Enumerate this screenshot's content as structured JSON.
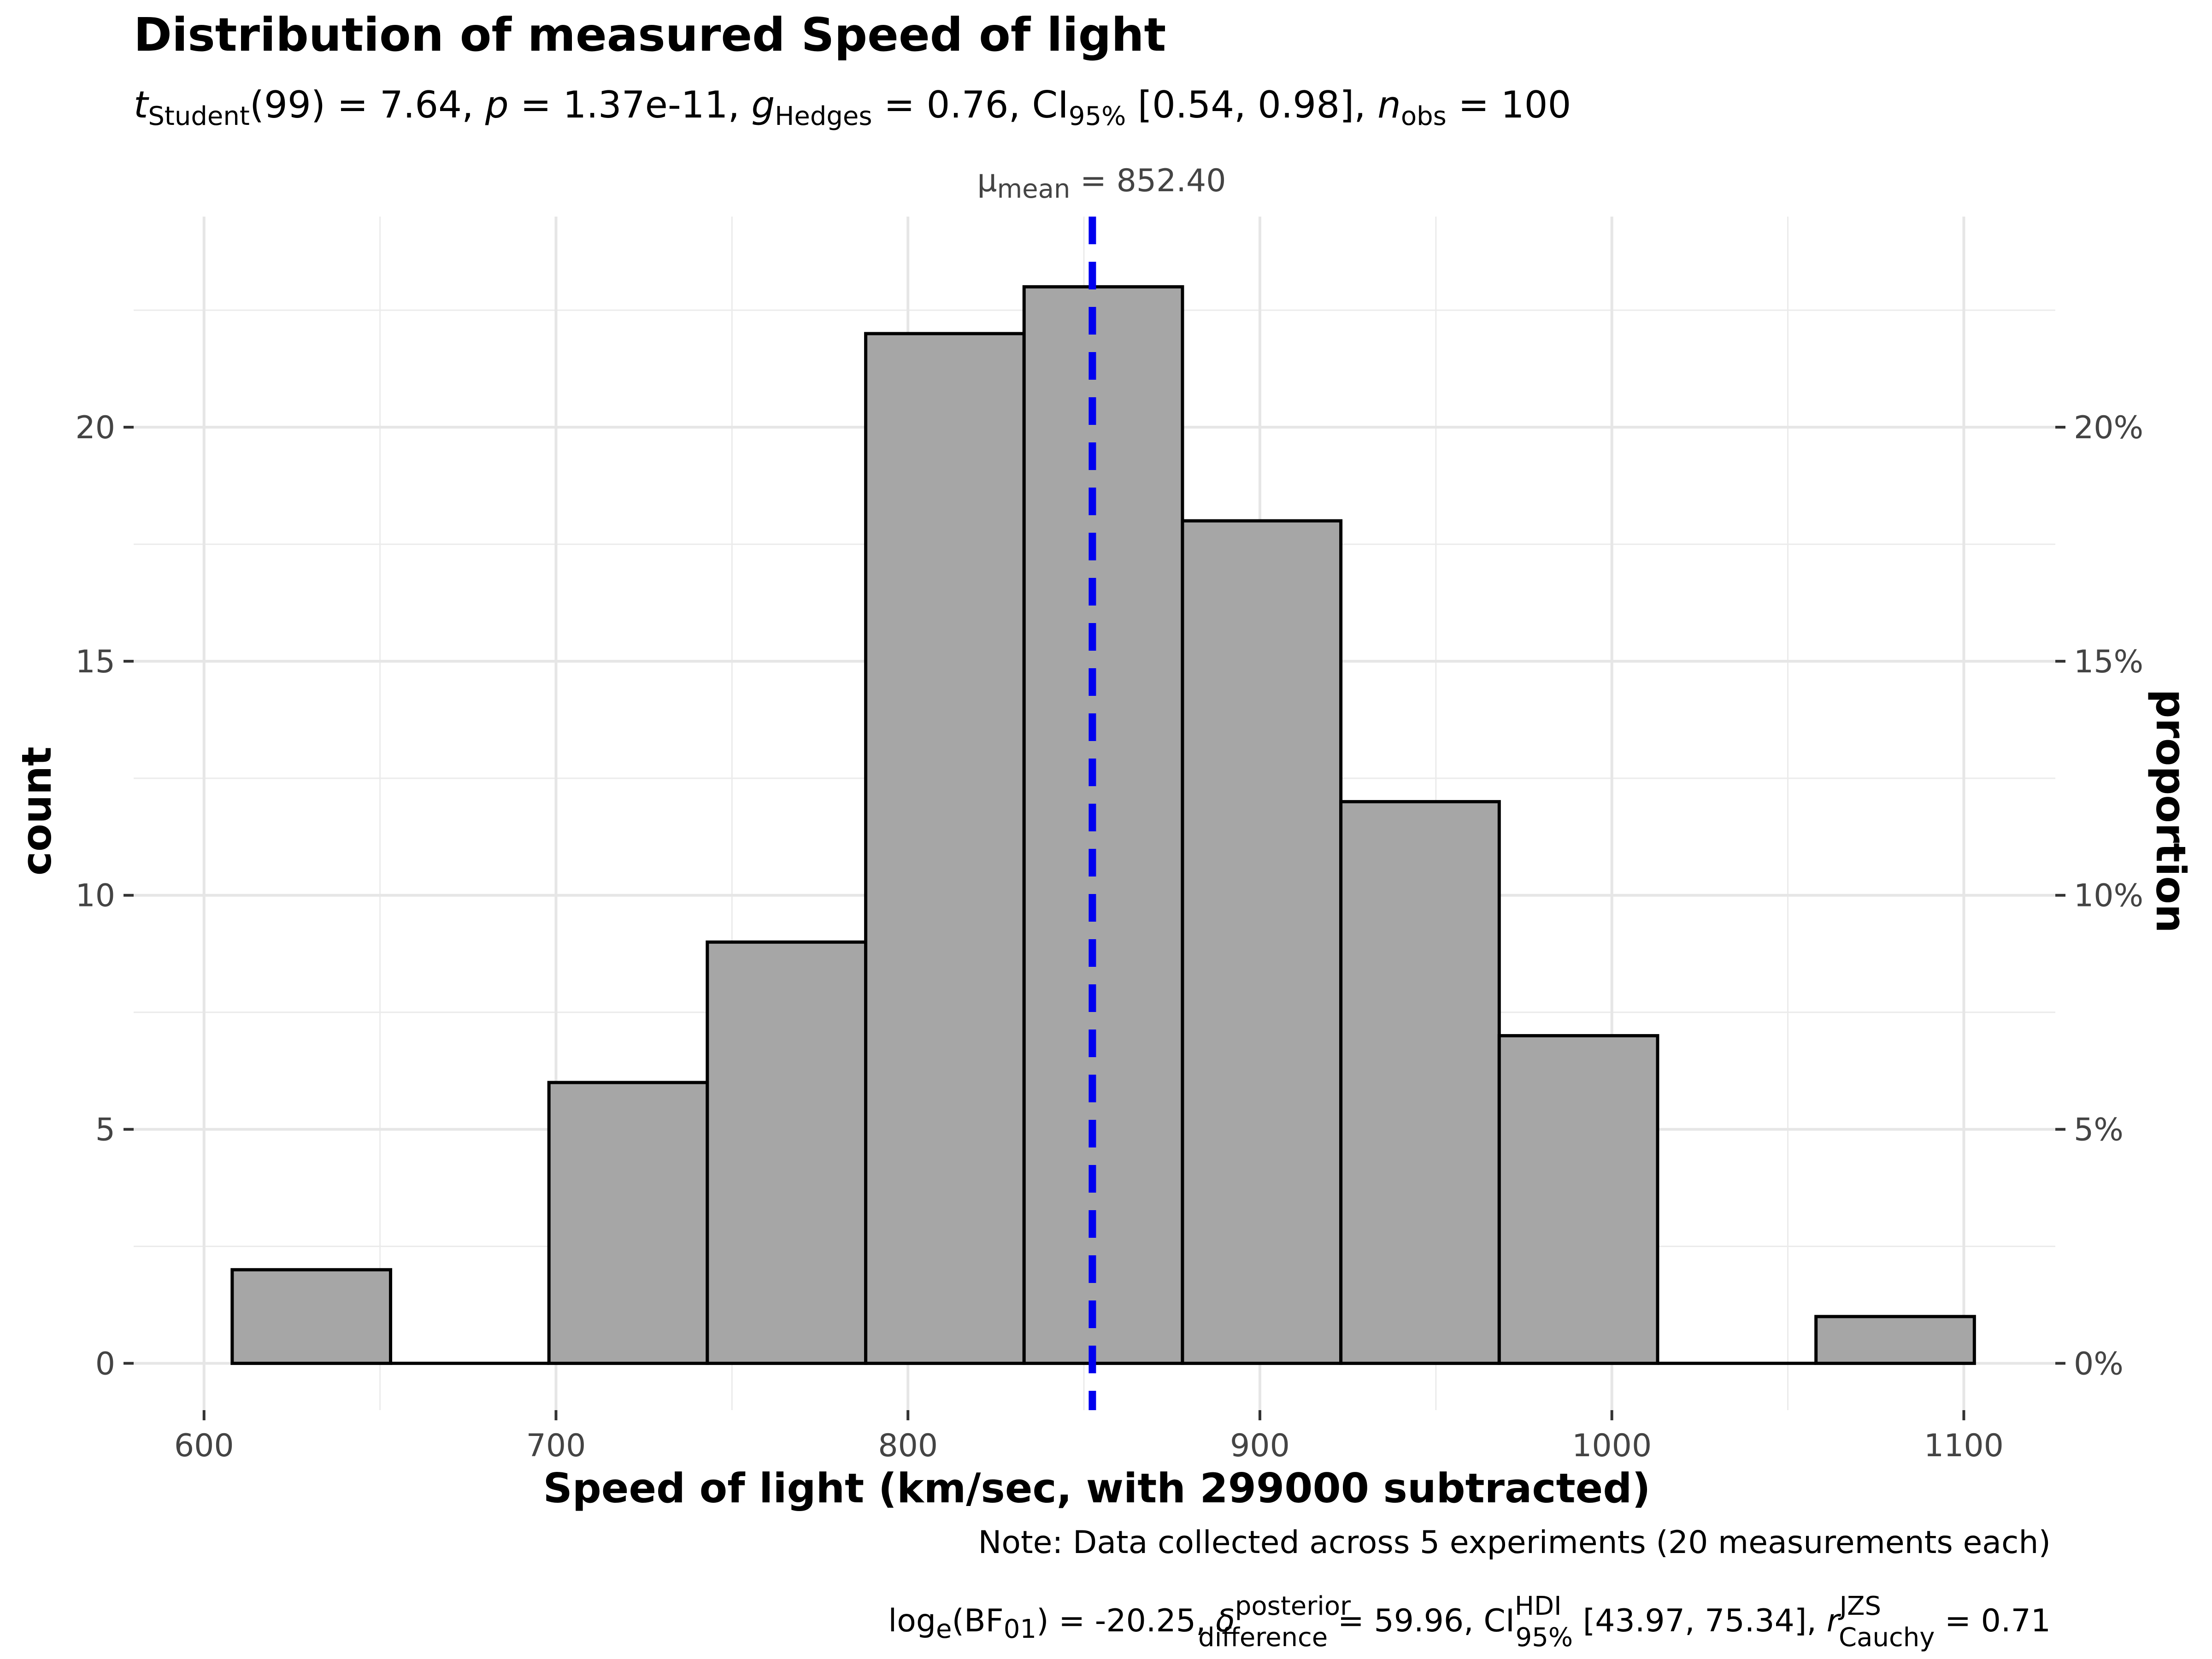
{
  "chart_data": {
    "type": "bar",
    "subtype": "histogram",
    "title": "Distribution of measured Speed of light",
    "subtitle": {
      "t_label": "t",
      "t_sub": "Student",
      "t_value": "(99) = 7.64, ",
      "p_label": "p",
      "p_value": " = 1.37e-11, ",
      "g_label": "g",
      "g_sub": "Hedges",
      "g_value": " = 0.76, CI",
      "ci_sub": "95%",
      "ci_value": " [0.54, 0.98], ",
      "n_label": "n",
      "n_sub": "obs",
      "n_value": " = 100"
    },
    "xlabel": "Speed of light (km/sec, with 299000 subtracted)",
    "ylabel": "count",
    "y2label": "proportion",
    "xlim": [
      580,
      1126
    ],
    "ylim": [
      -1,
      24.5
    ],
    "x_ticks": [
      600,
      700,
      800,
      900,
      1000,
      1100
    ],
    "y_ticks": [
      0,
      5,
      10,
      15,
      20
    ],
    "y2_ticks": [
      "0%",
      "5%",
      "10%",
      "15%",
      "20%"
    ],
    "bins": [
      {
        "x0": 608,
        "x1": 653,
        "count": 2
      },
      {
        "x0": 653,
        "x1": 698,
        "count": 0
      },
      {
        "x0": 698,
        "x1": 743,
        "count": 6
      },
      {
        "x0": 743,
        "x1": 788,
        "count": 9
      },
      {
        "x0": 788,
        "x1": 833,
        "count": 22
      },
      {
        "x0": 833,
        "x1": 878,
        "count": 23
      },
      {
        "x0": 878,
        "x1": 923,
        "count": 18
      },
      {
        "x0": 923,
        "x1": 968,
        "count": 12
      },
      {
        "x0": 968,
        "x1": 1013,
        "count": 7
      },
      {
        "x0": 1013,
        "x1": 1058,
        "count": 0
      },
      {
        "x0": 1058,
        "x1": 1103,
        "count": 1
      }
    ],
    "mean_line": {
      "value": 852.4,
      "label_symbol": "μ",
      "label_sub": "mean",
      "label_value": " = 852.40",
      "color": "#0000ee"
    },
    "bar_fill": "#a6a6a6",
    "bar_stroke": "#000000",
    "grid": true,
    "caption": {
      "note": "Note: Data collected across 5 experiments (20 measurements each)",
      "bf_prefix": "log",
      "bf_e": "e",
      "bf_open": "(BF",
      "bf_sub": "01",
      "bf_value": ") = -20.25, ",
      "delta_symbol": "δ",
      "delta_sup": "posterior",
      "delta_sub": "difference",
      "delta_value": " = 59.96, CI",
      "ci_sup": "HDI",
      "ci_sub": "95%",
      "ci_value": " [43.97, 75.34], ",
      "r_label": "r",
      "r_sup": "JZS",
      "r_sub": "Cauchy",
      "r_value": " = 0.71"
    }
  }
}
